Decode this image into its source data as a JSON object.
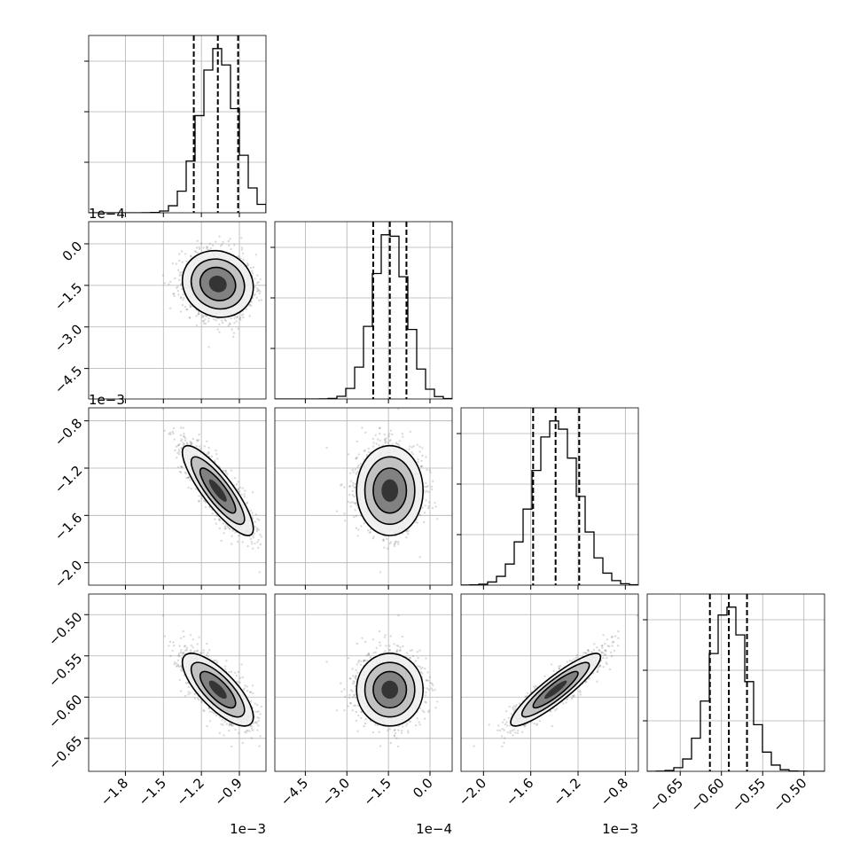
{
  "chart_data": {
    "type": "corner",
    "parameters": [
      {
        "median": -0.00107,
        "q16": -0.00126,
        "q84": -0.00091,
        "sigma": 0.00014,
        "range": [
          -0.00209,
          -0.00069
        ],
        "ticks": [
          "−1.8",
          "−1.5",
          "−1.2",
          "−0.9"
        ],
        "tick_values": [
          -0.0018,
          -0.0015,
          -0.0012,
          -0.0009
        ],
        "offset": "1e−3"
      },
      {
        "median": -0.000145,
        "q16": -0.000205,
        "q84": -8.5e-05,
        "sigma": 6e-05,
        "range": [
          -0.00056,
          8e-05
        ],
        "ticks": [
          "−4.5",
          "−3.0",
          "−1.5",
          "0.0"
        ],
        "tick_values": [
          -0.00045,
          -0.0003,
          -0.00015,
          0.0
        ],
        "offset": "1e−4"
      },
      {
        "median": -0.00139,
        "q16": -0.00158,
        "q84": -0.00119,
        "sigma": 0.00019,
        "range": [
          -0.00219,
          -0.00069
        ],
        "ticks": [
          "−2.0",
          "−1.6",
          "−1.2",
          "−0.8"
        ],
        "tick_values": [
          -0.002,
          -0.0016,
          -0.0012,
          -0.0008
        ],
        "offset": "1e−3"
      },
      {
        "median": -0.591,
        "q16": -0.614,
        "q84": -0.569,
        "sigma": 0.022,
        "range": [
          -0.69,
          -0.475
        ],
        "ticks": [
          "−0.65",
          "−0.60",
          "−0.55",
          "−0.50"
        ],
        "tick_values": [
          -0.65,
          -0.6,
          -0.55,
          -0.5
        ],
        "offset": ""
      }
    ],
    "correlations": [
      [
        1.0,
        -0.1,
        -0.85,
        -0.75
      ],
      [
        -0.1,
        1.0,
        0.0,
        0.0
      ],
      [
        -0.85,
        0.0,
        1.0,
        0.9
      ],
      [
        -0.75,
        0.0,
        0.9,
        1.0
      ]
    ],
    "histogram_bins": 20,
    "quantile_lines": [
      0.16,
      0.5,
      0.84
    ],
    "contour_levels": [
      0.5,
      1.0,
      1.5,
      2.0
    ],
    "grid": true
  }
}
